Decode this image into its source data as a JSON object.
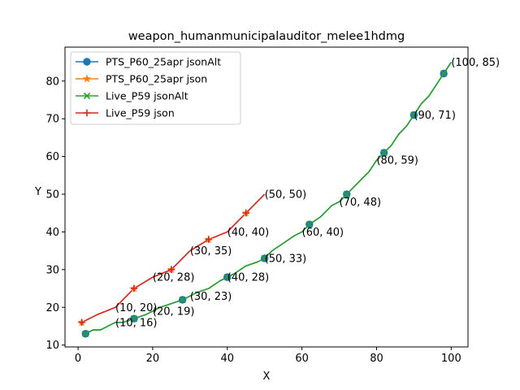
{
  "chart_data": {
    "type": "line",
    "title": "weapon_humanmunicipalauditor_melee1hdmg",
    "xlabel": "X",
    "ylabel": "Y",
    "xlim": [
      -3.5,
      104.5
    ],
    "ylim": [
      9.5,
      89
    ],
    "xticks": [
      0,
      20,
      40,
      60,
      80,
      100
    ],
    "yticks": [
      10,
      20,
      30,
      40,
      50,
      60,
      70,
      80
    ],
    "legend_position": "top-left",
    "series": [
      {
        "name": "PTS_P60_25apr jsonAlt",
        "color": "#1f77b4",
        "marker": "circle",
        "x": [
          2,
          4,
          6,
          8,
          10,
          12,
          15,
          18,
          20,
          22,
          25,
          28,
          30,
          32,
          35,
          38,
          40,
          42,
          45,
          48,
          50,
          52,
          55,
          58,
          60,
          62,
          65,
          68,
          70,
          72,
          75,
          78,
          80,
          82,
          84,
          86,
          88,
          90,
          92,
          94,
          96,
          98,
          100
        ],
        "y": [
          13,
          14,
          14,
          15,
          16,
          16,
          17,
          18,
          19,
          20,
          21,
          22,
          23,
          24,
          25,
          27,
          28,
          29,
          31,
          32,
          33,
          35,
          37,
          39,
          40,
          42,
          44,
          47,
          48,
          50,
          53,
          56,
          59,
          61,
          63,
          66,
          68,
          71,
          74,
          76,
          79,
          82,
          85
        ],
        "marker_x": [
          2,
          15,
          28,
          40,
          50,
          62,
          72,
          82,
          90,
          98
        ]
      },
      {
        "name": "PTS_P60_25apr json",
        "color": "#ff7f0e",
        "marker": "star",
        "x": [
          1,
          5,
          10,
          15,
          20,
          25,
          30,
          35,
          40,
          45,
          50
        ],
        "y": [
          16,
          18,
          20,
          25,
          28,
          30,
          35,
          38,
          40,
          45,
          50
        ],
        "marker_x": [
          1,
          15,
          25,
          35,
          45
        ]
      },
      {
        "name": "Live_P59 jsonAlt",
        "color": "#2ca02c",
        "marker": "x",
        "x": [
          2,
          4,
          6,
          8,
          10,
          12,
          15,
          18,
          20,
          22,
          25,
          28,
          30,
          32,
          35,
          38,
          40,
          42,
          45,
          48,
          50,
          52,
          55,
          58,
          60,
          62,
          65,
          68,
          70,
          72,
          75,
          78,
          80,
          82,
          84,
          86,
          88,
          90,
          92,
          94,
          96,
          98,
          100
        ],
        "y": [
          13,
          14,
          14,
          15,
          16,
          16,
          17,
          18,
          19,
          20,
          21,
          22,
          23,
          24,
          25,
          27,
          28,
          29,
          31,
          32,
          33,
          35,
          37,
          39,
          40,
          42,
          44,
          47,
          48,
          50,
          53,
          56,
          59,
          61,
          63,
          66,
          68,
          71,
          74,
          76,
          79,
          82,
          85
        ],
        "marker_x": [
          2,
          15,
          28,
          40,
          50,
          62,
          72,
          82,
          90,
          98
        ]
      },
      {
        "name": "Live_P59 json",
        "color": "#d62728",
        "marker": "plus",
        "x": [
          1,
          5,
          10,
          15,
          20,
          25,
          30,
          35,
          40,
          45,
          50
        ],
        "y": [
          16,
          18,
          20,
          25,
          28,
          30,
          35,
          38,
          40,
          45,
          50
        ],
        "marker_x": [
          1,
          15,
          25,
          35,
          45
        ]
      }
    ],
    "annotations": [
      {
        "x": 10,
        "y": 16,
        "text": "(10, 16)"
      },
      {
        "x": 20,
        "y": 19,
        "text": "(20, 19)"
      },
      {
        "x": 30,
        "y": 23,
        "text": "(30, 23)"
      },
      {
        "x": 40,
        "y": 28,
        "text": "(40, 28)"
      },
      {
        "x": 50,
        "y": 33,
        "text": "(50, 33)"
      },
      {
        "x": 60,
        "y": 40,
        "text": "(60, 40)"
      },
      {
        "x": 70,
        "y": 48,
        "text": "(70, 48)"
      },
      {
        "x": 80,
        "y": 59,
        "text": "(80, 59)"
      },
      {
        "x": 90,
        "y": 71,
        "text": "(90, 71)"
      },
      {
        "x": 100,
        "y": 85,
        "text": "(100, 85)"
      },
      {
        "x": 10,
        "y": 20,
        "text": "(10, 20)"
      },
      {
        "x": 20,
        "y": 28,
        "text": "(20, 28)"
      },
      {
        "x": 30,
        "y": 35,
        "text": "(30, 35)"
      },
      {
        "x": 40,
        "y": 40,
        "text": "(40, 40)"
      },
      {
        "x": 50,
        "y": 50,
        "text": "(50, 50)"
      }
    ]
  }
}
